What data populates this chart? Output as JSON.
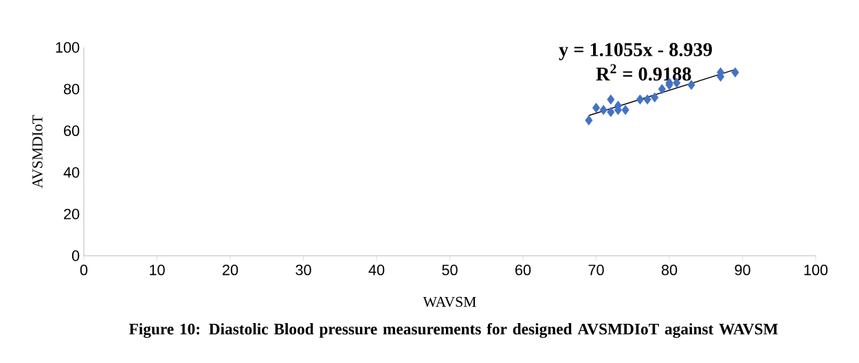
{
  "chart_data": {
    "type": "scatter",
    "xlabel": "WAVSM",
    "ylabel": "AVSMDIoT",
    "series": [
      {
        "color": "#4472c4",
        "marker": "diamond",
        "x": [
          69,
          70,
          71,
          72,
          72,
          73,
          73,
          74,
          76,
          77,
          78,
          79,
          80,
          80,
          81,
          83,
          87,
          87,
          89
        ],
        "values": [
          65,
          71,
          70,
          69,
          75,
          72,
          70,
          70,
          75,
          75,
          76,
          80,
          83,
          82,
          83,
          82,
          88,
          86,
          88
        ]
      },
      {
        "type": "line",
        "color": "#000000",
        "marker": "none",
        "x": [
          69,
          89
        ],
        "values": [
          67.3,
          89.4
        ]
      }
    ],
    "xlim": [
      0,
      100
    ],
    "xticks": [
      0,
      10,
      20,
      30,
      40,
      50,
      60,
      70,
      80,
      90,
      100
    ],
    "ylim": [
      0,
      100
    ],
    "yticks": [
      0,
      20,
      40,
      60,
      80,
      100
    ],
    "grid": false,
    "annotations": [
      "y = 1.1055x - 8.939",
      "R$^{2}$ = 0.9188",
      "Figure 10: Diastolic Blood pressure  measurements for designed AVSMDIoT against WAVSM"
    ]
  }
}
